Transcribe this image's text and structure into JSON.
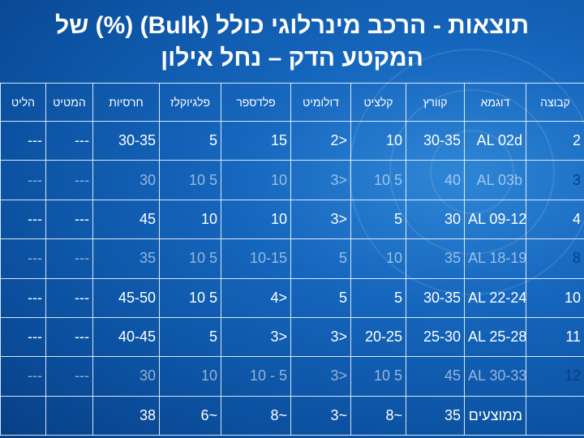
{
  "title_line1": "תוצאות - הרכב מינרלוגי כולל (Bulk) (%) של",
  "title_line2": "המקטע הדק – נחל אילון",
  "headers": [
    "קבוצה",
    "דוגמא",
    "קוורץ",
    "קלציט",
    "דולומיט",
    "פלדספר",
    "פלגיוקלז",
    "חרסיות",
    "המטיט",
    "הליט"
  ],
  "rows": [
    {
      "group": "2",
      "sample": "AL 02d",
      "values": [
        "30-35",
        "10",
        "<2",
        "15",
        "5",
        "30-35",
        "---",
        "---"
      ]
    },
    {
      "group": "3",
      "sample": "AL 03b",
      "values": [
        "40",
        "5  10",
        "<3",
        "10",
        "5  10",
        "30",
        "---",
        "---"
      ]
    },
    {
      "group": "4",
      "sample": "AL 09-12",
      "values": [
        "30",
        "5",
        "<3",
        "10",
        "10",
        "45",
        "---",
        "---"
      ]
    },
    {
      "group": "8",
      "sample": "AL 18-19",
      "values": [
        "35",
        "10",
        "5",
        "10-15",
        "5  10",
        "35",
        "---",
        "---"
      ]
    },
    {
      "group": "10",
      "sample": "AL 22-24",
      "values": [
        "30-35",
        "5",
        "5",
        "<4",
        "5  10",
        "45-50",
        "---",
        "---"
      ]
    },
    {
      "group": "11",
      "sample": "AL 25-28",
      "values": [
        "25-30",
        "20-25",
        "<3",
        "<3",
        "5",
        "40-45",
        "---",
        "---"
      ]
    },
    {
      "group": "12",
      "sample": "AL 30-33",
      "values": [
        "45",
        "5  10",
        "<3",
        "5 - 10",
        "10",
        "30",
        "---",
        "---"
      ]
    }
  ],
  "average": {
    "label": "ממוצעים",
    "values": [
      "35",
      "~8",
      "~3",
      "~8",
      "~6",
      "38",
      "",
      ""
    ]
  }
}
